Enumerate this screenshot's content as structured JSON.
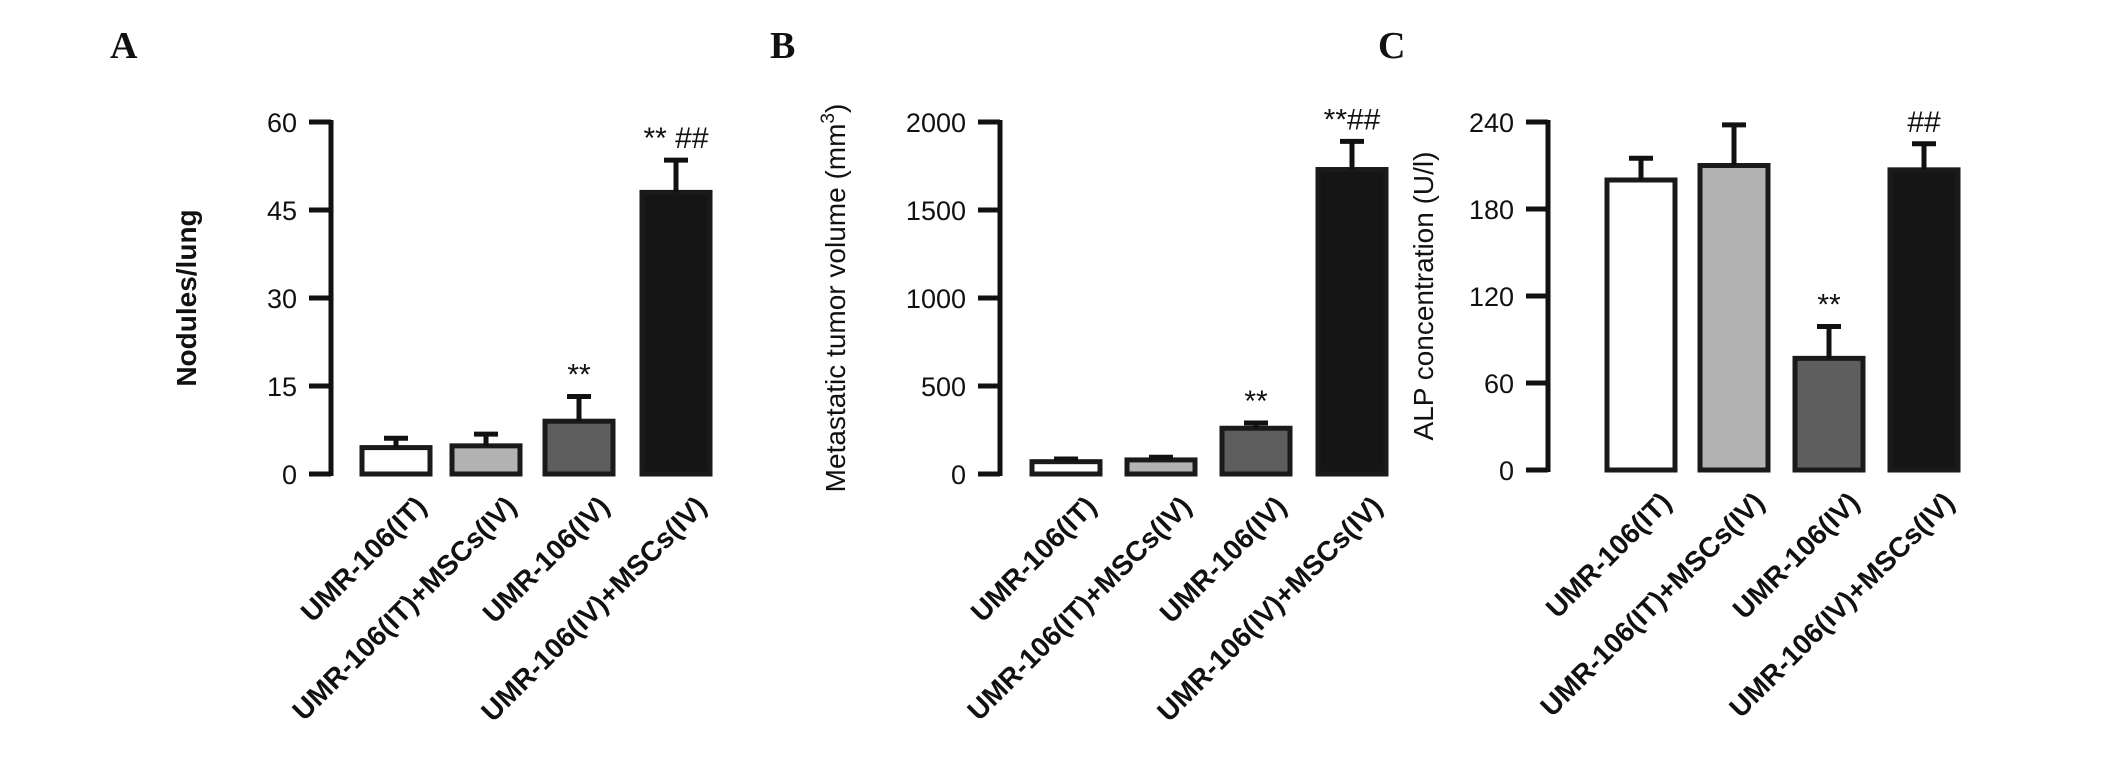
{
  "chart_data": [
    {
      "type": "bar",
      "panel": "A",
      "ylabel": "Nodules/lung",
      "ylim": [
        0,
        60
      ],
      "yticks": [
        0,
        15,
        30,
        45,
        60
      ],
      "categories": [
        "UMR-106(IT)",
        "UMR-106(IT)+MSCs(IV)",
        "UMR-106(IV)",
        "UMR-106(IV)+MSCs(IV)"
      ],
      "values": [
        4.5,
        4.8,
        9,
        48
      ],
      "errors": [
        1.6,
        2.0,
        4.2,
        5.5
      ],
      "annotations": [
        "",
        "",
        "**",
        "** ##"
      ],
      "colors": [
        "#ffffff",
        "#b3b3b3",
        "#5e5e5e",
        "#151515"
      ]
    },
    {
      "type": "bar",
      "panel": "B",
      "ylabel": "Metastatic tumor volume (mm",
      "ylabel_sup": "3",
      "ylabel_end": ")",
      "ylim": [
        0,
        2000
      ],
      "yticks": [
        0,
        500,
        1000,
        1500,
        2000
      ],
      "categories": [
        "UMR-106(IT)",
        "UMR-106(IT)+MSCs(IV)",
        "UMR-106(IV)",
        "UMR-106(IV)+MSCs(IV)"
      ],
      "values": [
        70,
        80,
        260,
        1730
      ],
      "errors": [
        15,
        15,
        30,
        160
      ],
      "annotations": [
        "",
        "",
        "**",
        "**##"
      ],
      "colors": [
        "#ffffff",
        "#b3b3b3",
        "#5e5e5e",
        "#151515"
      ]
    },
    {
      "type": "bar",
      "panel": "C",
      "ylabel": "ALP concentration (U/l)",
      "ylim": [
        0,
        240
      ],
      "yticks": [
        0,
        60,
        120,
        180,
        240
      ],
      "categories": [
        "UMR-106(IT)",
        "UMR-106(IT)+MSCs(IV)",
        "UMR-106(IV)",
        "UMR-106(IV)+MSCs(IV)"
      ],
      "values": [
        200,
        210,
        77,
        207
      ],
      "errors": [
        15,
        28,
        22,
        18
      ],
      "annotations": [
        "",
        "",
        "**",
        "##"
      ],
      "colors": [
        "#ffffff",
        "#b3b3b3",
        "#5e5e5e",
        "#151515"
      ]
    }
  ]
}
